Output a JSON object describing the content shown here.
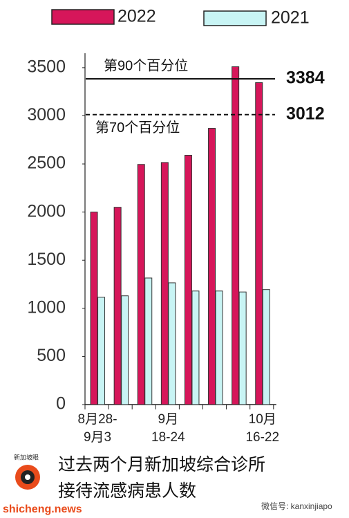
{
  "chart_data": {
    "type": "bar",
    "categories": [
      "8月28-\n9月3",
      null,
      null,
      "9月\n18-24",
      null,
      null,
      null,
      "10月\n16-22"
    ],
    "series": [
      {
        "name": "2022",
        "color": "#d6165a",
        "values": [
          2000,
          2050,
          2495,
          2515,
          2590,
          2870,
          3510,
          3345
        ]
      },
      {
        "name": "2021",
        "color": "#c8f4f4",
        "values": [
          1115,
          1130,
          1315,
          1265,
          1180,
          1180,
          1170,
          1195
        ]
      }
    ],
    "ylim": [
      0,
      3650
    ],
    "yticks": [
      0,
      500,
      1000,
      1500,
      2000,
      2500,
      3000,
      3500
    ],
    "legend": "top",
    "grid": false,
    "reference_lines": [
      {
        "value": 3384,
        "style": "solid",
        "annotation": "第90个百分位"
      },
      {
        "value": 3012,
        "style": "dashed",
        "annotation": "第70个百分位"
      }
    ]
  },
  "footer": {
    "caption": [
      "过去两个月新加坡综合诊所",
      "接待流感病患人数"
    ],
    "source": "shicheng.news",
    "logo": "新加坡眼",
    "watermark": "微信号: kanxinjiapo"
  }
}
